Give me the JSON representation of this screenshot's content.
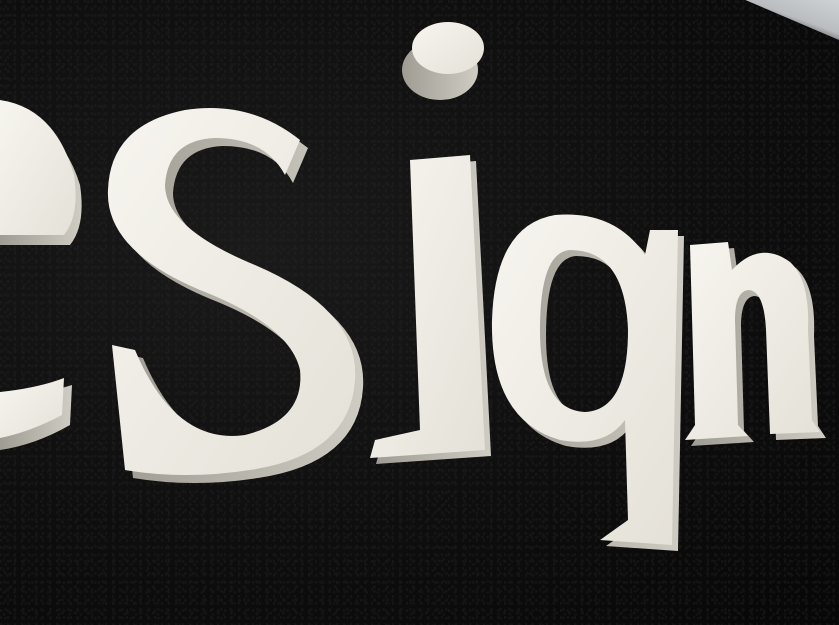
{
  "sign": {
    "text": "eSign",
    "letter_color": "#efede6",
    "letter_shadow_color": "#b9b6ad",
    "wall_color": "#0e0e0e"
  }
}
